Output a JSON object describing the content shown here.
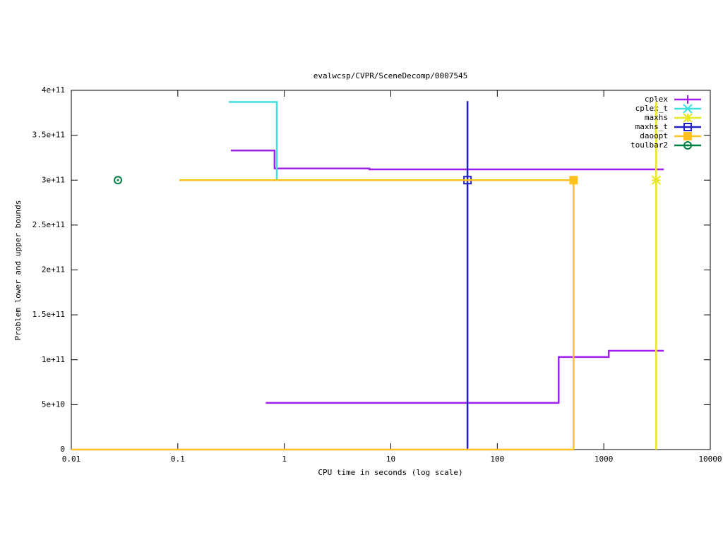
{
  "chart_data": {
    "type": "step",
    "title": "evalwcsp/CVPR/SceneDecomp/0007545",
    "x_label": "CPU time in seconds (log scale)",
    "y_label": "Problem lower and upper bounds",
    "x_log": true,
    "xlim": [
      0.01,
      10000
    ],
    "xticks": [
      0.01,
      0.1,
      1,
      10,
      100,
      1000,
      10000
    ],
    "ylim": [
      0,
      400000000000
    ],
    "yticks": [
      {
        "value": 0,
        "label": "0"
      },
      {
        "value": 50000000000,
        "label": "5e+10"
      },
      {
        "value": 100000000000,
        "label": "1e+11"
      },
      {
        "value": 150000000000,
        "label": "1.5e+11"
      },
      {
        "value": 200000000000,
        "label": "2e+11"
      },
      {
        "value": 250000000000,
        "label": "2.5e+11"
      },
      {
        "value": 300000000000,
        "label": "3e+11"
      },
      {
        "value": 350000000000,
        "label": "3.5e+11"
      },
      {
        "value": 400000000000,
        "label": "4e+11"
      }
    ],
    "legend_position": "top-right",
    "series": [
      {
        "name": "cplex",
        "color": "#a020f0",
        "marker": "plus",
        "lines": [
          {
            "x": [
              0.315,
              0.81,
              6.3,
              3660
            ],
            "values": [
              333000000000,
              313000000000,
              312000000000,
              312000000000
            ]
          },
          {
            "x": [
              0.67,
              377,
              1113,
              3660
            ],
            "values": [
              52000000000,
              103000000000,
              110000000000,
              110000000000
            ]
          }
        ],
        "points": {
          "x": [],
          "values": []
        }
      },
      {
        "name": "cplex_t",
        "color": "#40e0e0",
        "marker": "cross",
        "lines": [
          {
            "x": [
              0.3,
              0.85
            ],
            "values": [
              387000000000,
              300000000000
            ]
          }
        ],
        "points": {
          "x": [],
          "values": []
        }
      },
      {
        "name": "maxhs",
        "color": "#e8e820",
        "marker": "star",
        "lines": [
          {
            "x": [
              3100,
              3100
            ],
            "values": [
              0,
              387000000000
            ]
          }
        ],
        "points": {
          "x": [
            3100
          ],
          "values": [
            300000000000
          ]
        }
      },
      {
        "name": "maxhs_t",
        "color": "#2020c0",
        "marker": "square",
        "lines": [
          {
            "x": [
              52.5,
              52.5
            ],
            "values": [
              0,
              388000000000
            ]
          }
        ],
        "points": {
          "x": [
            52.5
          ],
          "values": [
            300000000000
          ]
        }
      },
      {
        "name": "daoopt",
        "color": "#ffc020",
        "marker": "filled-square",
        "lines": [
          {
            "x": [
              0.103,
              520,
              520
            ],
            "values": [
              300000000000,
              300000000000,
              0
            ]
          },
          {
            "x": [
              0.01,
              520
            ],
            "values": [
              0,
              0
            ]
          }
        ],
        "points": {
          "x": [
            520
          ],
          "values": [
            300000000000
          ]
        }
      },
      {
        "name": "toulbar2",
        "color": "#008040",
        "marker": "circle",
        "lines": [],
        "points": {
          "x": [
            0.0274
          ],
          "values": [
            300000000000
          ]
        }
      }
    ]
  }
}
